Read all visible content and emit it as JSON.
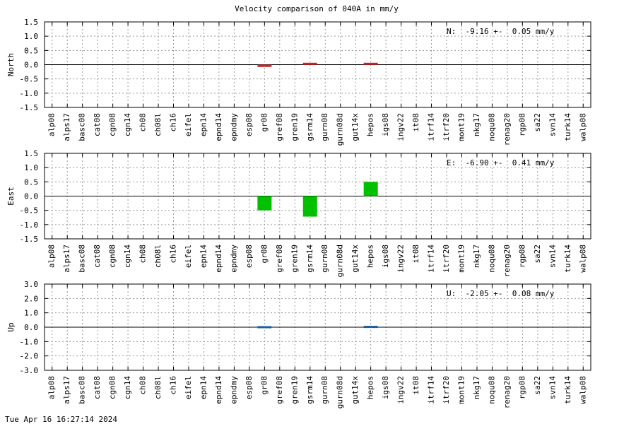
{
  "title": "Velocity comparison of 040A in mm/y",
  "footer": "Tue Apr 16 16:27:14 2024",
  "chart_data": [
    {
      "type": "bar",
      "ylabel": "North",
      "annotation": "N:  -9.16 +-  0.05 mm/y",
      "color": "#cc2222",
      "grid": true,
      "categories": [
        "alp08",
        "alps17",
        "basc08",
        "cat08",
        "cgn08",
        "cgn14",
        "ch08",
        "ch08l",
        "ch16",
        "eifel",
        "epn14",
        "epnd14",
        "epndmy",
        "esp08",
        "gr08",
        "gref08",
        "gren19",
        "gsrm14",
        "gurn08",
        "gurn08d",
        "gut14x",
        "hepos",
        "igs08",
        "ingv22",
        "it08",
        "itrf14",
        "itrf20",
        "mont19",
        "nkg17",
        "noqu08",
        "renag20",
        "rgp08",
        "sa22",
        "svn14",
        "turk14",
        "walp08"
      ],
      "values": [
        null,
        null,
        null,
        null,
        null,
        null,
        null,
        null,
        null,
        null,
        null,
        null,
        null,
        null,
        -0.08,
        null,
        null,
        0.03,
        null,
        null,
        null,
        0.03,
        null,
        null,
        null,
        null,
        null,
        null,
        null,
        null,
        null,
        null,
        null,
        null,
        null,
        null
      ],
      "ylim": [
        -1.5,
        1.5
      ],
      "yticks": [
        1.5,
        {
          "value": 1,
          "label": "1.0"
        },
        0.5,
        {
          "value": 0,
          "label": "0.0"
        },
        -0.5,
        {
          "value": -1,
          "label": "-1.0"
        },
        -1.5
      ]
    },
    {
      "type": "bar",
      "ylabel": "East",
      "annotation": "E:  -6.90 +-  0.41 mm/y",
      "color": "#00c000",
      "grid": true,
      "categories": [
        "alp08",
        "alps17",
        "basc08",
        "cat08",
        "cgn08",
        "cgn14",
        "ch08",
        "ch08l",
        "ch16",
        "eifel",
        "epn14",
        "epnd14",
        "epndmy",
        "esp08",
        "gr08",
        "gref08",
        "gren19",
        "gsrm14",
        "gurn08",
        "gurn08d",
        "gut14x",
        "hepos",
        "igs08",
        "ingv22",
        "it08",
        "itrf14",
        "itrf20",
        "mont19",
        "nkg17",
        "noqu08",
        "renag20",
        "rgp08",
        "sa22",
        "svn14",
        "turk14",
        "walp08"
      ],
      "values": [
        null,
        null,
        null,
        null,
        null,
        null,
        null,
        null,
        null,
        null,
        null,
        null,
        null,
        null,
        -0.5,
        null,
        null,
        -0.72,
        null,
        null,
        null,
        0.5,
        null,
        null,
        null,
        null,
        null,
        null,
        null,
        null,
        null,
        null,
        null,
        null,
        null,
        null
      ],
      "ylim": [
        -1.5,
        1.5
      ],
      "yticks": [
        1.5,
        {
          "value": 1,
          "label": "1.0"
        },
        0.5,
        {
          "value": 0,
          "label": "0.0"
        },
        -0.5,
        {
          "value": -1,
          "label": "-1.0"
        },
        -1.5
      ]
    },
    {
      "type": "bar",
      "ylabel": "Up",
      "annotation": "U:  -2.05 +-  0.08 mm/y",
      "color": "#1a5fa0",
      "grid": true,
      "categories": [
        "alp08",
        "alps17",
        "basc08",
        "cat08",
        "cgn08",
        "cgn14",
        "ch08",
        "ch08l",
        "ch16",
        "eifel",
        "epn14",
        "epnd14",
        "epndmy",
        "esp08",
        "gr08",
        "gref08",
        "gren19",
        "gsrm14",
        "gurn08",
        "gurn08d",
        "gut14x",
        "hepos",
        "igs08",
        "ingv22",
        "it08",
        "itrf14",
        "itrf20",
        "mont19",
        "nkg17",
        "noqu08",
        "renag20",
        "rgp08",
        "sa22",
        "svn14",
        "turk14",
        "walp08"
      ],
      "values": [
        null,
        null,
        null,
        null,
        null,
        null,
        null,
        null,
        null,
        null,
        null,
        null,
        null,
        null,
        -0.03,
        null,
        null,
        null,
        null,
        null,
        null,
        0.02,
        null,
        null,
        null,
        null,
        null,
        null,
        null,
        null,
        null,
        null,
        null,
        null,
        null,
        null
      ],
      "ylim": [
        -3,
        3
      ],
      "yticks": [
        {
          "value": 3,
          "label": "3.0"
        },
        {
          "value": 2,
          "label": "2.0"
        },
        {
          "value": 1,
          "label": "1.0"
        },
        {
          "value": 0,
          "label": "0.0"
        },
        {
          "value": -1,
          "label": "-1.0"
        },
        {
          "value": -2,
          "label": "-2.0"
        },
        {
          "value": -3,
          "label": "-3.0"
        }
      ]
    }
  ]
}
